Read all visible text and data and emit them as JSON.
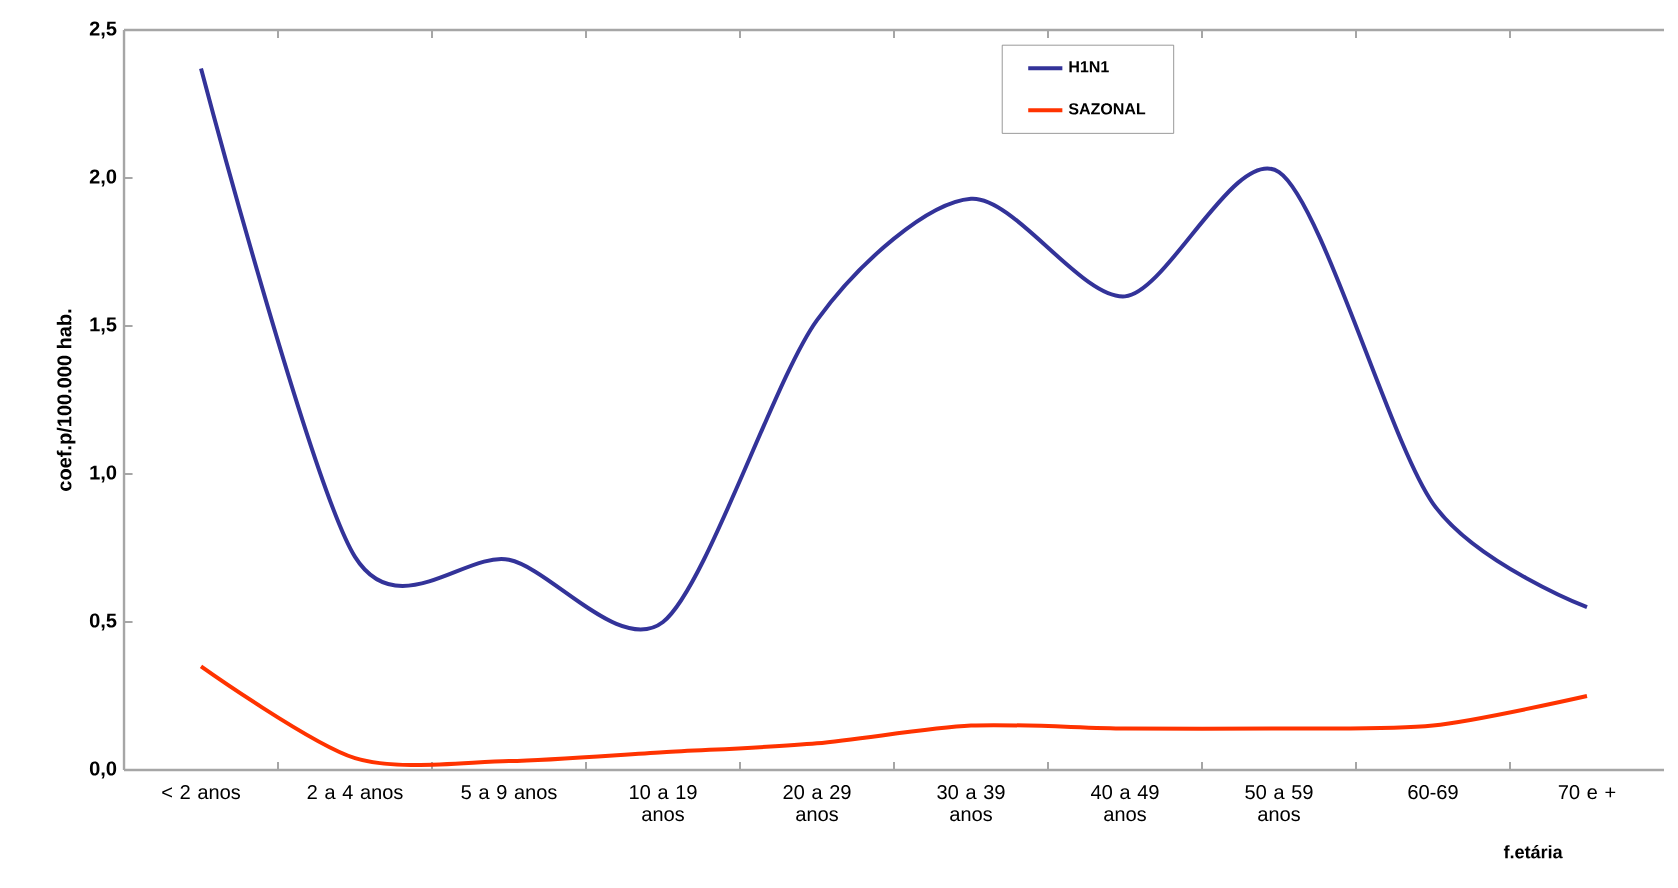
{
  "chart_data": {
    "type": "line",
    "xlabel": "f.etária",
    "ylabel": "coef.p/100.000 hab.",
    "categories": [
      "< 2 anos",
      "2 a 4 anos",
      "5 a 9 anos",
      "10 a 19 anos",
      "20 a 29 anos",
      "30 a 39 anos",
      "40 a 49 anos",
      "50 a 59 anos",
      "60-69",
      "70 e +"
    ],
    "series": [
      {
        "name": "H1N1",
        "color": "#333399",
        "values": [
          2.37,
          0.72,
          0.71,
          0.5,
          1.52,
          1.93,
          1.6,
          2.02,
          0.9,
          0.55
        ]
      },
      {
        "name": "SAZONAL",
        "color": "#ff3300",
        "values": [
          0.35,
          0.04,
          0.03,
          0.06,
          0.09,
          0.15,
          0.14,
          0.14,
          0.15,
          0.25
        ]
      }
    ],
    "ylim": [
      0,
      2.5
    ],
    "yticks": [
      {
        "value": 0,
        "label": "0,0"
      },
      {
        "value": 0.5,
        "label": "0,5"
      },
      {
        "value": 1,
        "label": "1,0"
      },
      {
        "value": 1.5,
        "label": "1,5"
      },
      {
        "value": 2,
        "label": "2,0"
      },
      {
        "value": 2.5,
        "label": "2,5"
      }
    ],
    "grid": false,
    "legend": "top",
    "marker": "none",
    "line_style": "solid"
  }
}
